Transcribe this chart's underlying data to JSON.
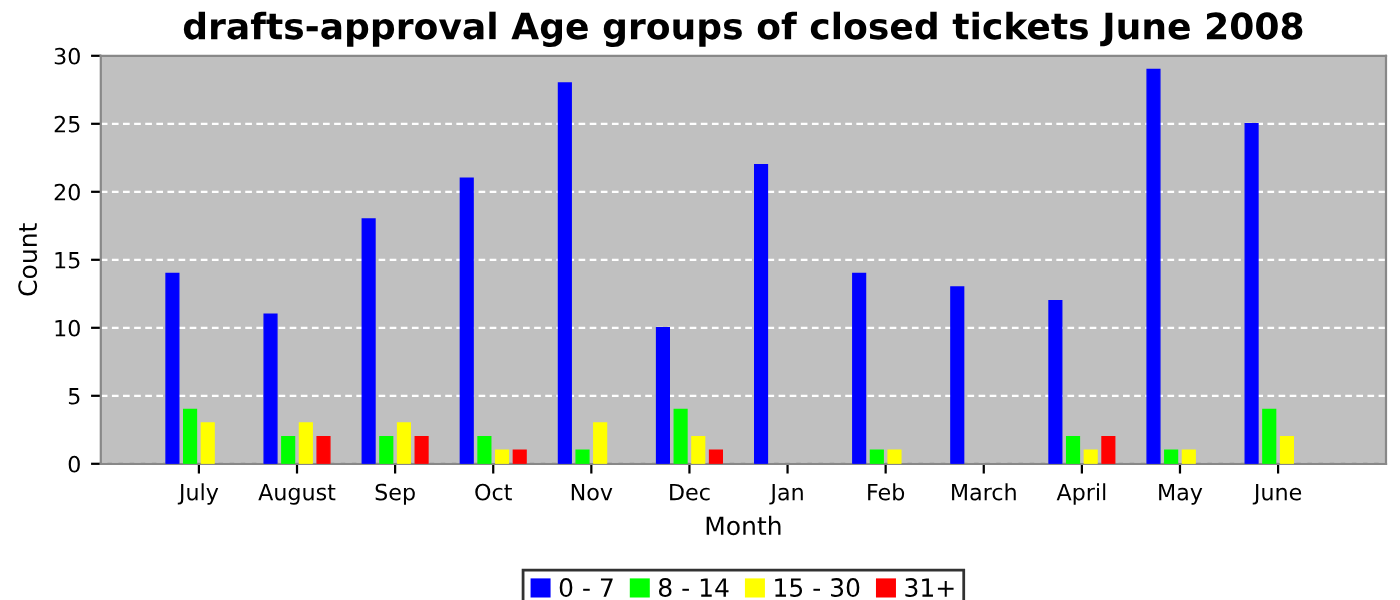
{
  "chart_data": {
    "type": "bar",
    "title": "drafts-approval Age groups of closed tickets June 2008",
    "xlabel": "Month",
    "ylabel": "Count",
    "categories": [
      "July",
      "August",
      "Sep",
      "Oct",
      "Nov",
      "Dec",
      "Jan",
      "Feb",
      "March",
      "April",
      "May",
      "June"
    ],
    "series": [
      {
        "name": "0 - 7",
        "color": "#0000ff",
        "values": [
          14,
          11,
          18,
          21,
          28,
          10,
          22,
          14,
          13,
          12,
          29,
          25
        ]
      },
      {
        "name": "8 - 14",
        "color": "#00ff00",
        "values": [
          4,
          2,
          2,
          2,
          1,
          4,
          null,
          1,
          null,
          2,
          1,
          4
        ]
      },
      {
        "name": "15 - 30",
        "color": "#ffff00",
        "values": [
          3,
          3,
          3,
          1,
          3,
          2,
          null,
          1,
          null,
          1,
          1,
          2
        ]
      },
      {
        "name": "31+",
        "color": "#ff0000",
        "values": [
          null,
          2,
          2,
          1,
          null,
          1,
          null,
          null,
          null,
          2,
          null,
          null
        ]
      }
    ],
    "ylim": [
      0,
      30
    ],
    "yticks": [
      0,
      5,
      10,
      15,
      20,
      25,
      30
    ],
    "grid": "y",
    "legend": "bottom"
  }
}
